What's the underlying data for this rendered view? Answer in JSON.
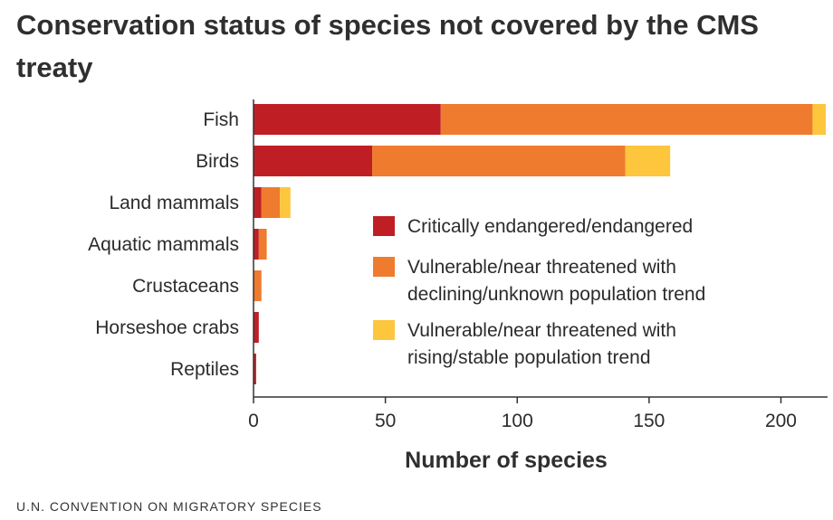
{
  "title": "Conservation status of species not covered by the CMS treaty",
  "source": "U.N. CONVENTION ON MIGRATORY SPECIES",
  "colors": {
    "critically_endangered": "#BF1F24",
    "vulnerable_declining": "#EF7B2E",
    "vulnerable_rising": "#FDC63D",
    "axis": "#333333",
    "text": "#2b2b2b"
  },
  "chart_data": {
    "type": "bar",
    "orientation": "horizontal",
    "stacked": true,
    "categories": [
      "Fish",
      "Birds",
      "Land mammals",
      "Aquatic mammals",
      "Crustaceans",
      "Horseshoe crabs",
      "Reptiles"
    ],
    "series": [
      {
        "name": "Critically endangered/endangered",
        "color": "#BF1F24",
        "values": [
          71,
          45,
          3,
          2,
          0,
          2,
          1
        ]
      },
      {
        "name": "Vulnerable/near threatened with declining/unknown population trend",
        "color": "#EF7B2E",
        "values": [
          141,
          96,
          7,
          3,
          3,
          0,
          0
        ]
      },
      {
        "name": "Vulnerable/near threatened with rising/stable population trend",
        "color": "#FDC63D",
        "values": [
          5,
          17,
          4,
          0,
          0,
          0,
          0
        ]
      }
    ],
    "legend": [
      {
        "lines": [
          "Critically endangered/endangered"
        ],
        "color": "#BF1F24"
      },
      {
        "lines": [
          "Vulnerable/near threatened with",
          "declining/unknown population trend"
        ],
        "color": "#EF7B2E"
      },
      {
        "lines": [
          "Vulnerable/near threatened with",
          "rising/stable population trend"
        ],
        "color": "#FDC63D"
      }
    ],
    "x_ticks": [
      "0",
      "50",
      "100",
      "150",
      "200"
    ],
    "xlabel": "Number of species",
    "ylabel": "",
    "xlim": [
      0,
      217
    ],
    "grid": false,
    "legend_placement": "center-right inside plot"
  }
}
